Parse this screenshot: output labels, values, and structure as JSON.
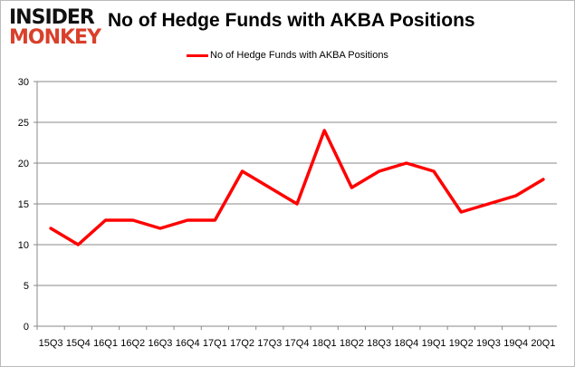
{
  "logo": {
    "top": "INSIDER",
    "bottom": "MONKEY"
  },
  "chart_data": {
    "type": "line",
    "title": "No of Hedge Funds with AKBA Positions",
    "categories": [
      "15Q3",
      "15Q4",
      "16Q1",
      "16Q2",
      "16Q3",
      "16Q4",
      "17Q1",
      "17Q2",
      "17Q3",
      "17Q4",
      "18Q1",
      "18Q2",
      "18Q3",
      "18Q4",
      "19Q1",
      "19Q2",
      "19Q3",
      "19Q4",
      "20Q1"
    ],
    "series": [
      {
        "name": "No of Hedge Funds with AKBA Positions",
        "color": "#ff0000",
        "values": [
          12,
          10,
          13,
          13,
          12,
          13,
          13,
          19,
          17,
          15,
          24,
          17,
          19,
          20,
          19,
          14,
          15,
          16,
          18
        ]
      }
    ],
    "ylim": [
      0,
      30
    ],
    "yticks": [
      0,
      5,
      10,
      15,
      20,
      25,
      30
    ],
    "grid": true,
    "legend": "top-center"
  }
}
